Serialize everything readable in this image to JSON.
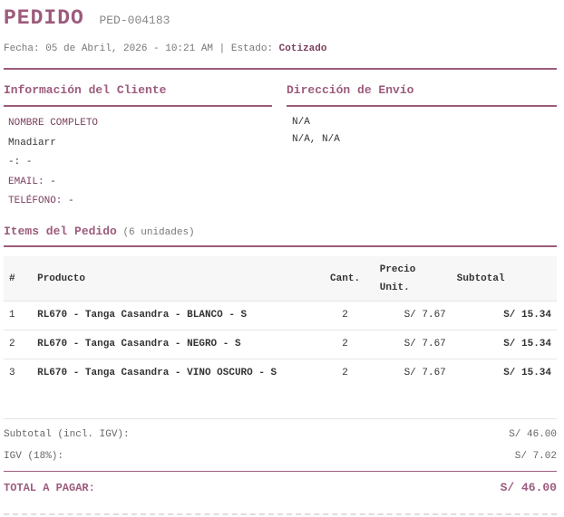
{
  "header": {
    "title": "PEDIDO",
    "code": "PED-004183",
    "meta": "Fecha: 05 de Abril, 2026 - 10:21 AM | Estado:",
    "status": "Cotizado"
  },
  "client": {
    "title": "Información del Cliente",
    "rows": [
      [
        "NOMBRE COMPLETO",
        ""
      ],
      [
        "Mnadiarr",
        ""
      ],
      [
        "-:",
        "-"
      ],
      [
        "EMAIL:",
        "-"
      ],
      [
        "TELÉFONO:",
        "-"
      ]
    ]
  },
  "shipping": {
    "title": "Dirección de Envío",
    "lines": [
      "N/A",
      "N/A, N/A"
    ]
  },
  "items": {
    "title": "Items del Pedido",
    "units": "(6 unidades)",
    "headers": [
      "#",
      "Producto",
      "Cant.",
      "Precio Unit.",
      "Subtotal"
    ],
    "rows": [
      [
        "1",
        "RL670 - Tanga Casandra - BLANCO - S",
        "2",
        "S/ 7.67",
        "S/ 15.34"
      ],
      [
        "2",
        "RL670 - Tanga Casandra - NEGRO - S",
        "2",
        "S/ 7.67",
        "S/ 15.34"
      ],
      [
        "3",
        "RL670 - Tanga Casandra - VINO OSCURO - S",
        "2",
        "S/ 7.67",
        "S/ 15.34"
      ]
    ]
  },
  "totals": {
    "subtotal_label": "Subtotal (incl. IGV):",
    "subtotal": "S/ 46.00",
    "igv_label": "IGV (18%):",
    "igv": "S/ 7.02",
    "total_label": "TOTAL A PAGAR:",
    "total": "S/ 46.00"
  }
}
